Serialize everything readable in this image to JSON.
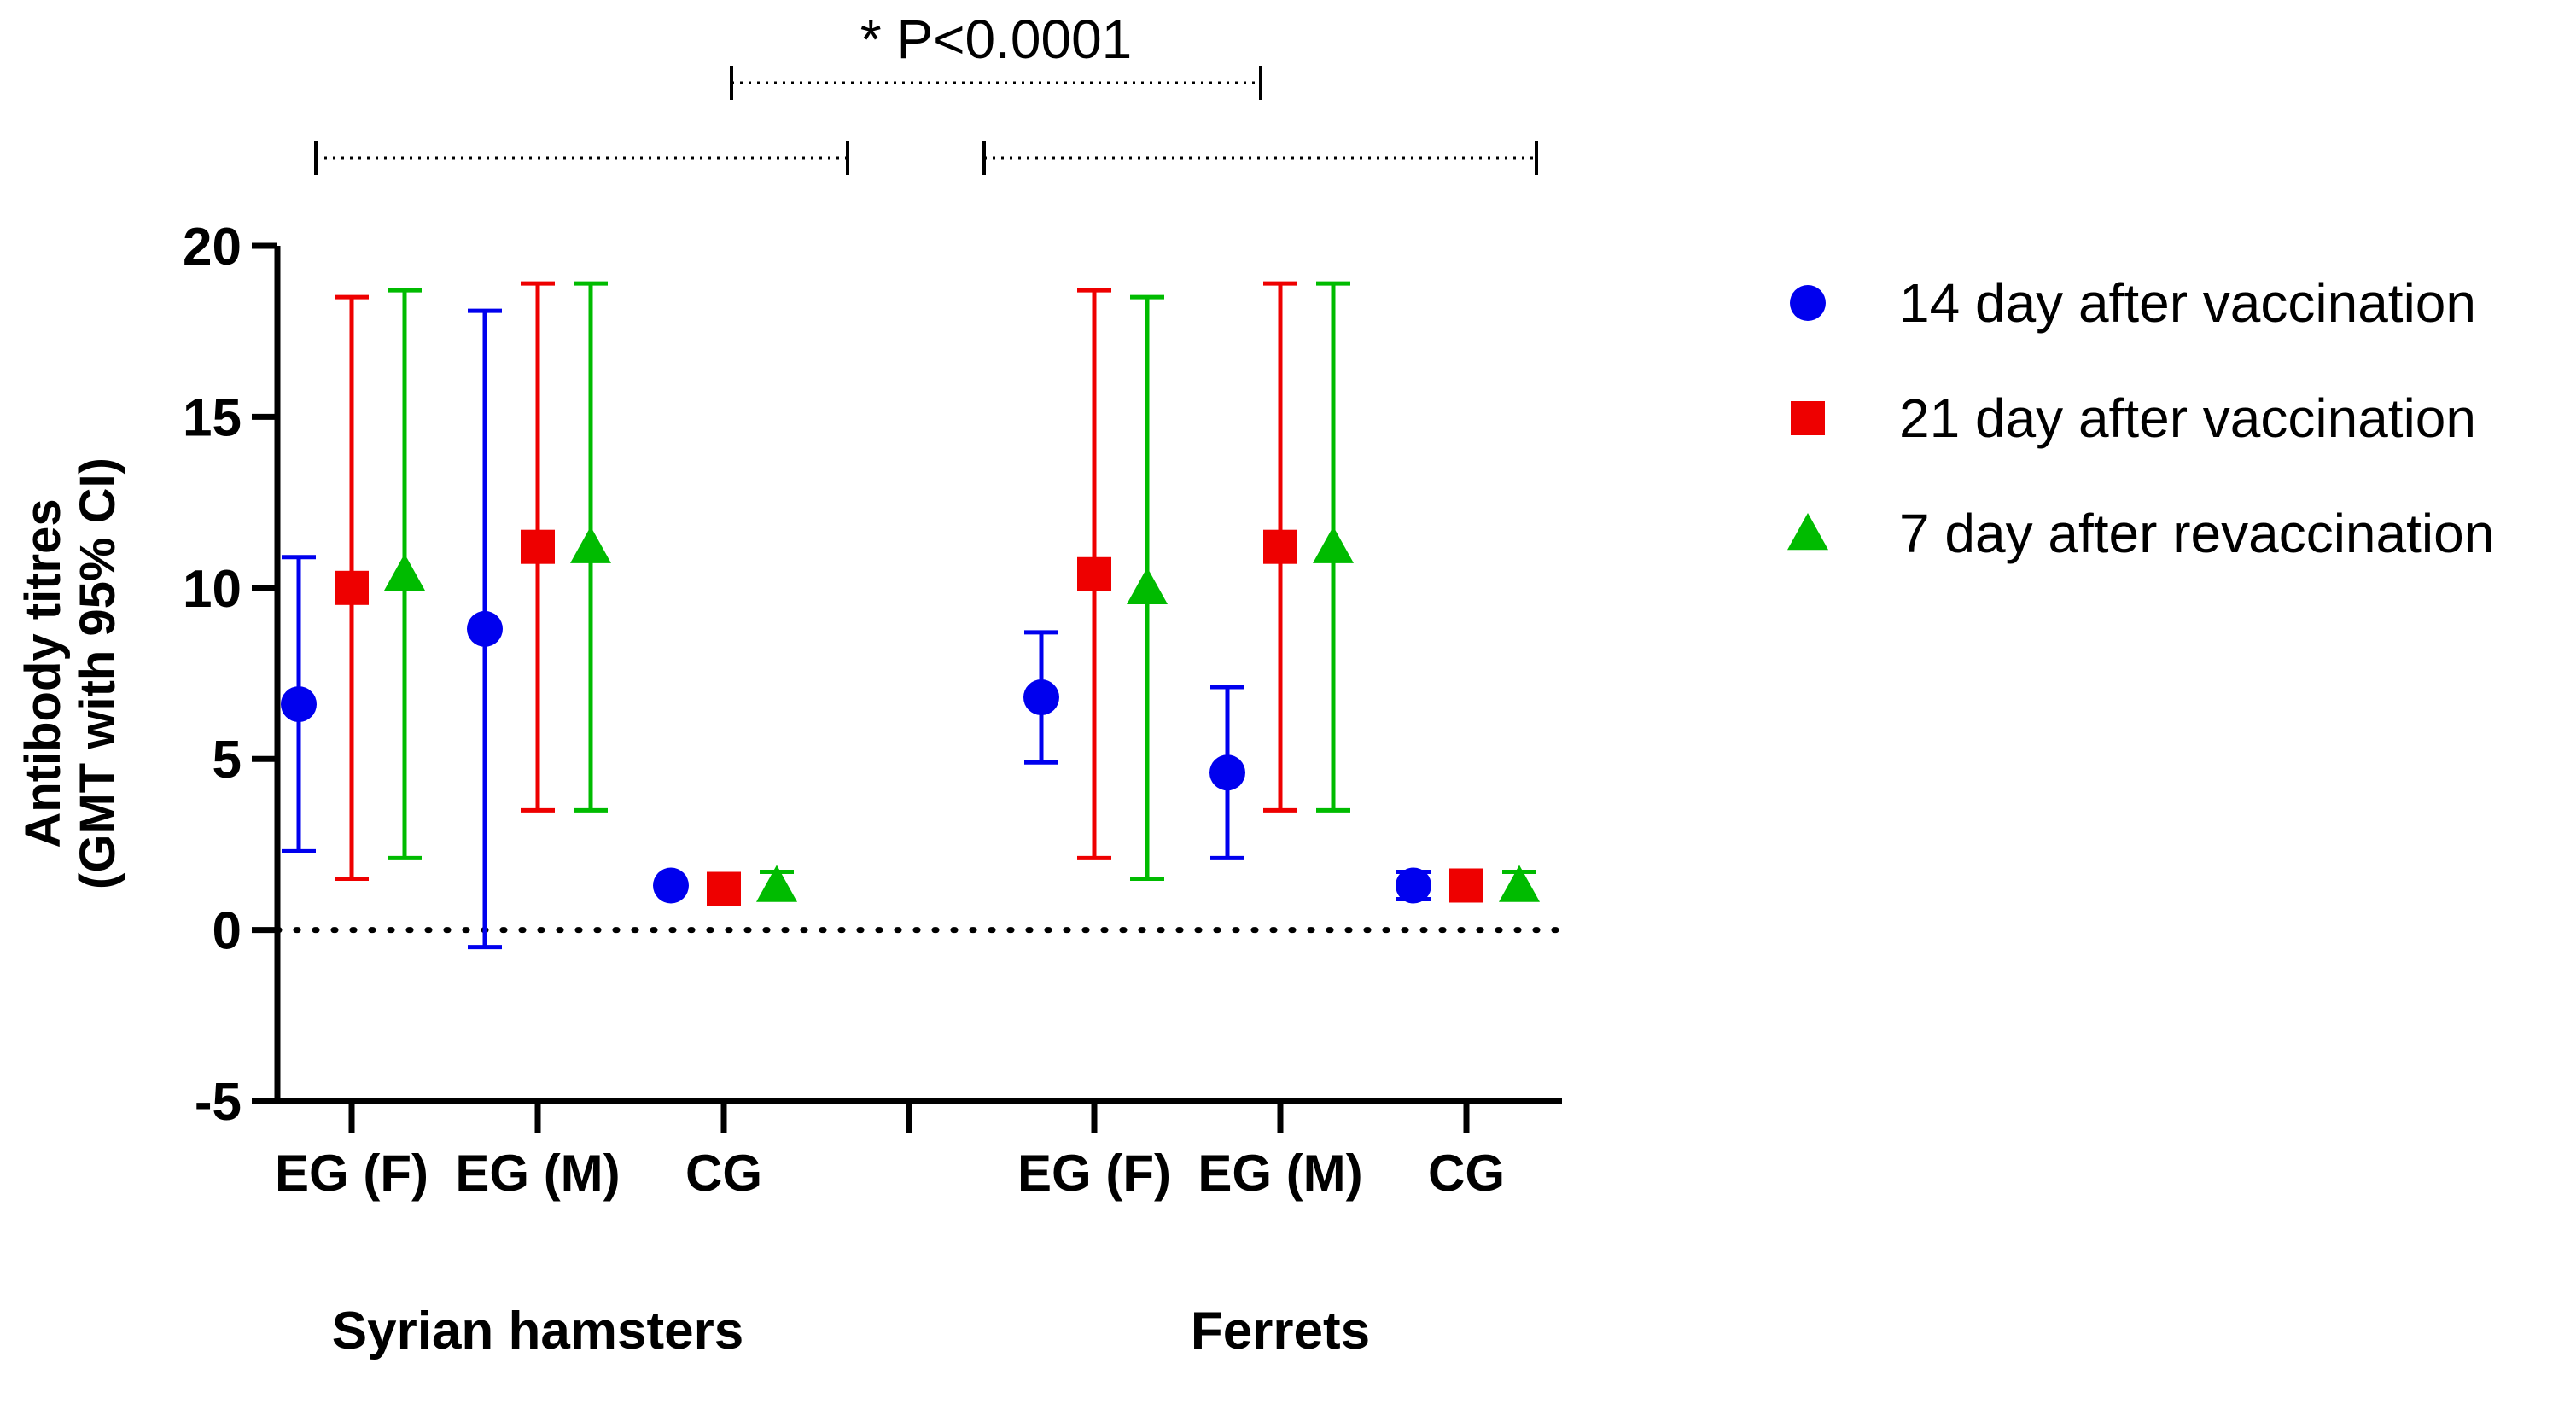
{
  "chart_data": {
    "type": "scatter",
    "title": "",
    "ylabel_lines": [
      "Antibody titres",
      "(GMT with 95% CI)"
    ],
    "xlabel": "",
    "ylim": [
      -5,
      20
    ],
    "yticks": [
      -5,
      0,
      5,
      10,
      15,
      20
    ],
    "reference_line": 0,
    "groups": [
      {
        "name": "Syrian hamsters",
        "categories": [
          "EG (F)",
          "EG (M)",
          "CG"
        ]
      },
      {
        "name": "Ferrets",
        "categories": [
          "EG (F)",
          "EG (M)",
          "CG"
        ]
      }
    ],
    "series": [
      {
        "name": "14 day after vaccination",
        "color": "#0000ee",
        "marker": "circle",
        "points": [
          {
            "group": "Syrian hamsters",
            "category": "EG (F)",
            "y": 6.6,
            "lower": 2.3,
            "upper": 10.9
          },
          {
            "group": "Syrian hamsters",
            "category": "EG (M)",
            "y": 8.8,
            "lower": -0.5,
            "upper": 18.1
          },
          {
            "group": "Syrian hamsters",
            "category": "CG",
            "y": 1.3,
            "lower": 1.3,
            "upper": 1.3
          },
          {
            "group": "Ferrets",
            "category": "EG (F)",
            "y": 6.8,
            "lower": 4.9,
            "upper": 8.7
          },
          {
            "group": "Ferrets",
            "category": "EG (M)",
            "y": 4.6,
            "lower": 2.1,
            "upper": 7.1
          },
          {
            "group": "Ferrets",
            "category": "CG",
            "y": 1.3,
            "lower": 0.9,
            "upper": 1.7
          }
        ]
      },
      {
        "name": "21 day after vaccination",
        "color": "#ee0000",
        "marker": "square",
        "points": [
          {
            "group": "Syrian hamsters",
            "category": "EG (F)",
            "y": 10.0,
            "lower": 1.5,
            "upper": 18.5
          },
          {
            "group": "Syrian hamsters",
            "category": "EG (M)",
            "y": 11.2,
            "lower": 3.5,
            "upper": 18.9
          },
          {
            "group": "Syrian hamsters",
            "category": "CG",
            "y": 1.2,
            "lower": 1.2,
            "upper": 1.2
          },
          {
            "group": "Ferrets",
            "category": "EG (F)",
            "y": 10.4,
            "lower": 2.1,
            "upper": 18.7
          },
          {
            "group": "Ferrets",
            "category": "EG (M)",
            "y": 11.2,
            "lower": 3.5,
            "upper": 18.9
          },
          {
            "group": "Ferrets",
            "category": "CG",
            "y": 1.3,
            "lower": 1.3,
            "upper": 1.3
          }
        ]
      },
      {
        "name": "7 day after revaccination",
        "color": "#00bb00",
        "marker": "triangle",
        "points": [
          {
            "group": "Syrian hamsters",
            "category": "EG (F)",
            "y": 10.4,
            "lower": 2.1,
            "upper": 18.7
          },
          {
            "group": "Syrian hamsters",
            "category": "EG (M)",
            "y": 11.2,
            "lower": 3.5,
            "upper": 18.9
          },
          {
            "group": "Syrian hamsters",
            "category": "CG",
            "y": 1.3,
            "lower": 0.9,
            "upper": 1.7
          },
          {
            "group": "Ferrets",
            "category": "EG (F)",
            "y": 10.0,
            "lower": 1.5,
            "upper": 18.5
          },
          {
            "group": "Ferrets",
            "category": "EG (M)",
            "y": 11.2,
            "lower": 3.5,
            "upper": 18.9
          },
          {
            "group": "Ferrets",
            "category": "CG",
            "y": 1.3,
            "lower": 0.9,
            "upper": 1.7
          }
        ]
      }
    ],
    "annotations": [
      {
        "text": "* P<0.0001",
        "type": "significance",
        "spans": "Syrian hamsters vs Ferrets"
      }
    ]
  }
}
